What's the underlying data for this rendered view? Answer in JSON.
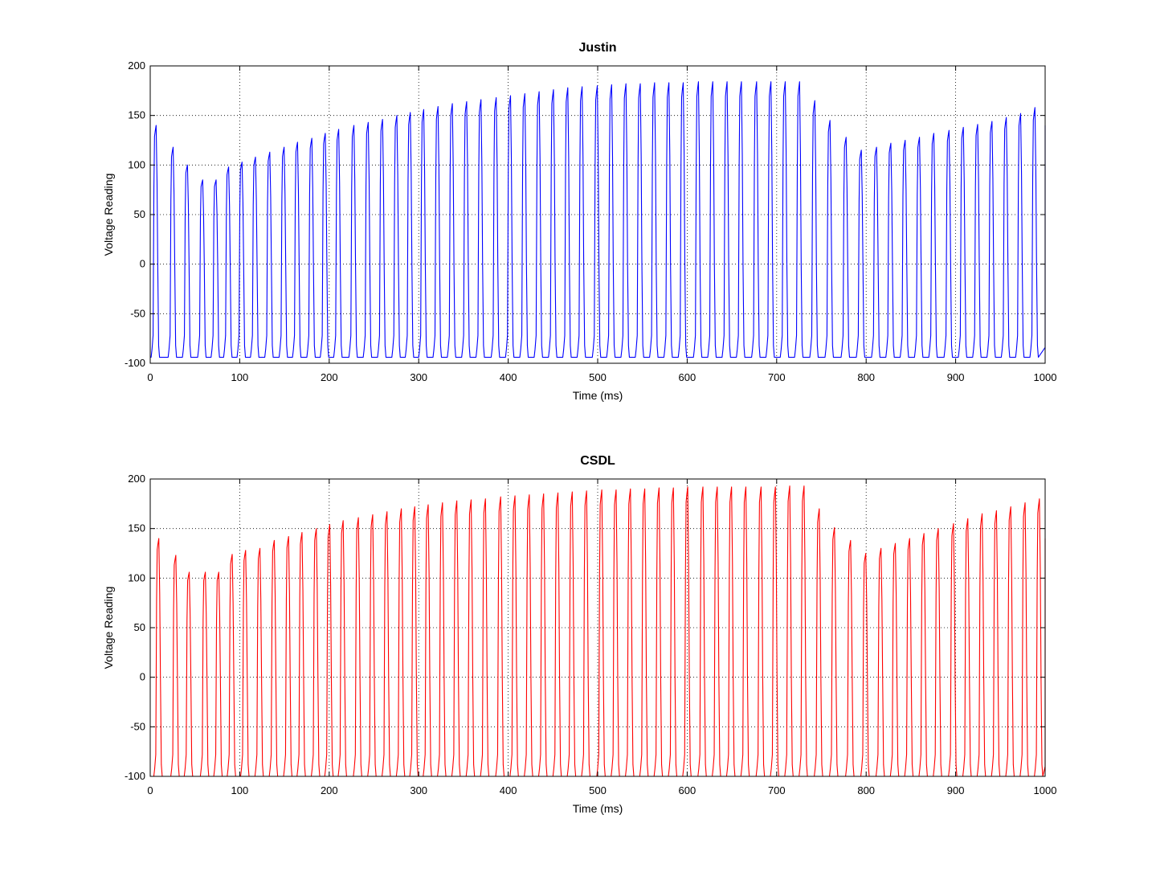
{
  "chart_data": [
    {
      "type": "line",
      "title": "Justin",
      "xlabel": "Time (ms)",
      "ylabel": "Voltage Reading",
      "xlim": [
        0,
        1000
      ],
      "ylim": [
        -100,
        200
      ],
      "xticks": [
        0,
        100,
        200,
        300,
        400,
        500,
        600,
        700,
        800,
        900,
        1000
      ],
      "yticks": [
        200,
        150,
        100,
        50,
        0,
        -50,
        -100
      ],
      "grid": true,
      "color": "#0000ff",
      "trough": -94,
      "series": [
        {
          "spike_times": [
            5,
            24,
            40,
            57,
            72,
            86,
            101,
            116,
            132,
            148,
            163,
            179,
            194,
            209,
            226,
            242,
            258,
            274,
            289,
            304,
            320,
            336,
            352,
            368,
            385,
            401,
            417,
            433,
            449,
            465,
            481,
            498,
            514,
            530,
            546,
            562,
            578,
            594,
            611,
            627,
            643,
            659,
            676,
            692,
            708,
            724,
            741,
            758,
            776,
            793,
            810,
            826,
            842,
            858,
            874,
            891,
            907,
            923,
            939,
            955,
            971,
            987
          ],
          "peaks": [
            140,
            118,
            100,
            85,
            85,
            98,
            103,
            108,
            113,
            118,
            123,
            127,
            132,
            136,
            140,
            143,
            146,
            150,
            153,
            156,
            159,
            162,
            164,
            166,
            168,
            170,
            172,
            174,
            176,
            178,
            179,
            180,
            181,
            182,
            182,
            183,
            183,
            183,
            184,
            184,
            184,
            184,
            184,
            184,
            184,
            184,
            165,
            145,
            128,
            115,
            118,
            122,
            125,
            128,
            132,
            135,
            138,
            141,
            144,
            148,
            152,
            158
          ]
        }
      ]
    },
    {
      "type": "line",
      "title": "CSDL",
      "xlabel": "Time (ms)",
      "ylabel": "Voltage Reading",
      "xlim": [
        0,
        1000
      ],
      "ylim": [
        -100,
        200
      ],
      "xticks": [
        0,
        100,
        200,
        300,
        400,
        500,
        600,
        700,
        800,
        900,
        1000
      ],
      "yticks": [
        200,
        150,
        100,
        50,
        0,
        -50,
        -100
      ],
      "grid": true,
      "color": "#ff0000",
      "trough": -100,
      "series": [
        {
          "spike_times": [
            8,
            27,
            42,
            60,
            75,
            90,
            105,
            121,
            137,
            153,
            168,
            184,
            199,
            214,
            231,
            247,
            263,
            279,
            294,
            309,
            325,
            341,
            357,
            373,
            390,
            406,
            422,
            438,
            454,
            470,
            486,
            503,
            519,
            535,
            551,
            567,
            583,
            599,
            616,
            632,
            648,
            664,
            681,
            697,
            713,
            729,
            746,
            763,
            781,
            798,
            815,
            831,
            847,
            863,
            879,
            896,
            912,
            928,
            944,
            960,
            976,
            992
          ],
          "peaks": [
            140,
            123,
            106,
            106,
            106,
            124,
            128,
            130,
            138,
            142,
            146,
            150,
            154,
            158,
            161,
            164,
            167,
            170,
            172,
            174,
            176,
            178,
            179,
            180,
            182,
            183,
            184,
            185,
            186,
            187,
            188,
            189,
            189,
            190,
            190,
            191,
            191,
            192,
            192,
            192,
            192,
            192,
            192,
            192,
            193,
            193,
            170,
            151,
            138,
            125,
            130,
            135,
            140,
            145,
            150,
            155,
            160,
            165,
            168,
            172,
            176,
            180
          ]
        }
      ]
    }
  ]
}
